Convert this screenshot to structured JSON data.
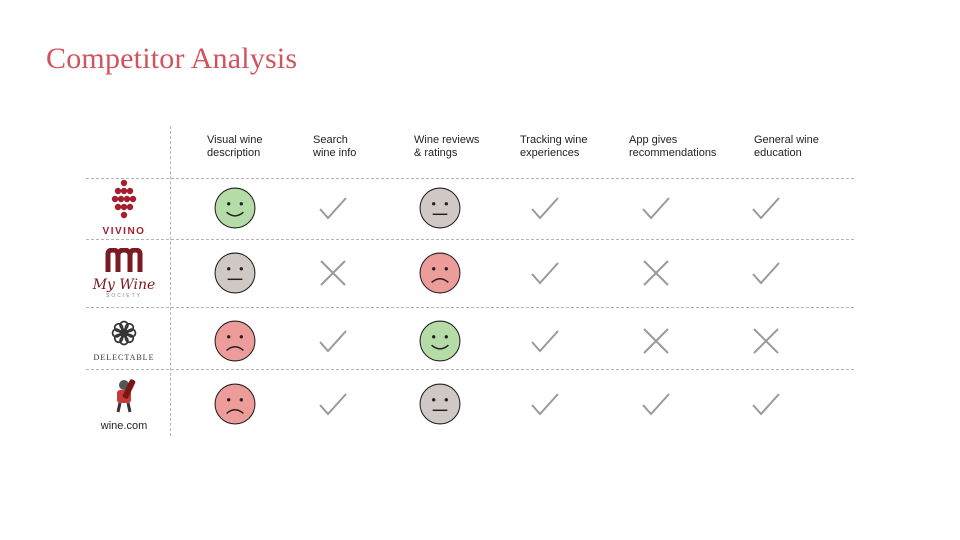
{
  "slide": {
    "title": "Competitor Analysis"
  },
  "columns": [
    "Visual wine\ndescription",
    "Search\nwine info",
    "Wine reviews\n& ratings",
    "Tracking wine\nexperiences",
    "App gives\nrecommendations",
    "General wine\neducation"
  ],
  "competitors": [
    {
      "logo_icon": "vivino-grape-icon",
      "logo_text": "VIVINO",
      "color": "#a31f2e",
      "ratings": [
        "smile",
        "check",
        "neutral",
        "check",
        "check",
        "check"
      ]
    },
    {
      "logo_icon": "my-wine-society-icon",
      "logo_text": "My Wine",
      "logo_subtext": "SOCIETY",
      "color": "#7a1b22",
      "ratings": [
        "neutral",
        "cross",
        "frown",
        "check",
        "cross",
        "check"
      ]
    },
    {
      "logo_icon": "delectable-flower-icon",
      "logo_text": "DELECTABLE",
      "color": "#333333",
      "ratings": [
        "frown",
        "check",
        "smile",
        "check",
        "cross",
        "cross"
      ]
    },
    {
      "logo_icon": "wine-com-icon",
      "logo_text": "wine.com",
      "color": "#222222",
      "ratings": [
        "frown",
        "check",
        "neutral",
        "check",
        "check",
        "check"
      ]
    }
  ],
  "colors": {
    "title": "#d0545e",
    "smile": "#b5dca6",
    "neutral": "#cfc8c4",
    "frown": "#ee9c9a",
    "mark": "#9a9a9a"
  }
}
